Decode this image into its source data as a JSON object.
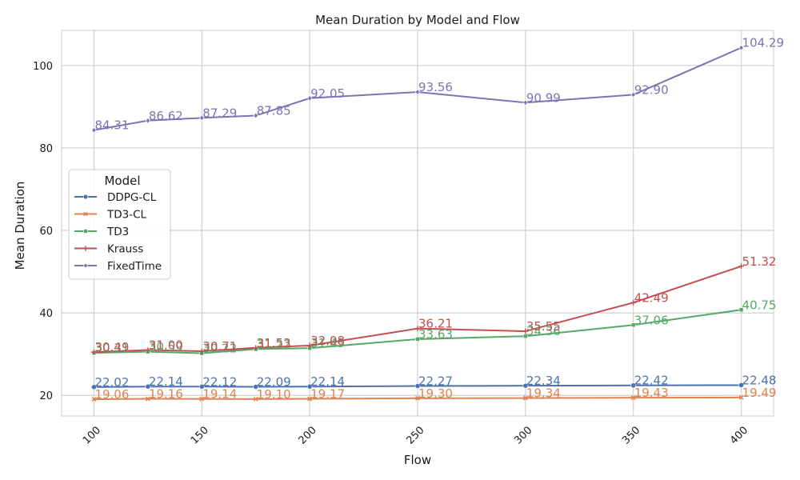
{
  "chart_data": {
    "type": "line",
    "title": "Mean Duration by Model and Flow",
    "xlabel": "Flow",
    "ylabel": "Mean Duration",
    "x": [
      100,
      125,
      150,
      175,
      200,
      250,
      300,
      350,
      400
    ],
    "xticks": [
      100,
      150,
      200,
      250,
      300,
      350,
      400
    ],
    "xlim": [
      85,
      415
    ],
    "ylim": [
      15,
      108.5
    ],
    "yticks": [
      20,
      40,
      60,
      80,
      100
    ],
    "grid": true,
    "legend": {
      "title": "Model",
      "placement": "center-left"
    },
    "series": [
      {
        "name": "DDPG-CL",
        "color": "#4c72b0",
        "marker": "circle",
        "values": [
          22.02,
          22.14,
          22.12,
          22.09,
          22.14,
          22.27,
          22.34,
          22.42,
          22.48
        ],
        "labels": [
          "22.02",
          "22.14",
          "22.12",
          "22.09",
          "22.14",
          "22.27",
          "22.34",
          "22.42",
          "22.48"
        ]
      },
      {
        "name": "TD3-CL",
        "color": "#dd8452",
        "marker": "x",
        "values": [
          19.06,
          19.16,
          19.14,
          19.1,
          19.17,
          19.3,
          19.34,
          19.43,
          19.49
        ],
        "labels": [
          "19.06",
          "19.16",
          "19.14",
          "19.10",
          "19.17",
          "19.30",
          "19.34",
          "19.43",
          "19.49"
        ]
      },
      {
        "name": "TD3",
        "color": "#55a868",
        "marker": "square",
        "values": [
          30.31,
          30.59,
          30.22,
          31.22,
          31.45,
          33.63,
          34.36,
          37.06,
          40.75
        ],
        "labels": [
          "30.31",
          "30.59",
          "30.22",
          "31.22",
          "31.45",
          "33.63",
          "34.36",
          "37.06",
          "40.75"
        ]
      },
      {
        "name": "Krauss",
        "color": "#c44e52",
        "marker": "plus",
        "values": [
          30.49,
          31.0,
          30.71,
          31.53,
          32.08,
          36.21,
          35.55,
          42.49,
          51.32
        ],
        "labels": [
          "30.49",
          "31.00",
          "30.71",
          "31.53",
          "32.08",
          "36.21",
          "35.55",
          "42.49",
          "51.32"
        ]
      },
      {
        "name": "FixedTime",
        "color": "#8172b3",
        "marker": "diamond",
        "values": [
          84.31,
          86.62,
          87.29,
          87.85,
          92.05,
          93.56,
          90.99,
          92.9,
          104.29
        ],
        "labels": [
          "84.31",
          "86.62",
          "87.29",
          "87.85",
          "92.05",
          "93.56",
          "90.99",
          "92.90",
          "104.29"
        ]
      }
    ]
  }
}
